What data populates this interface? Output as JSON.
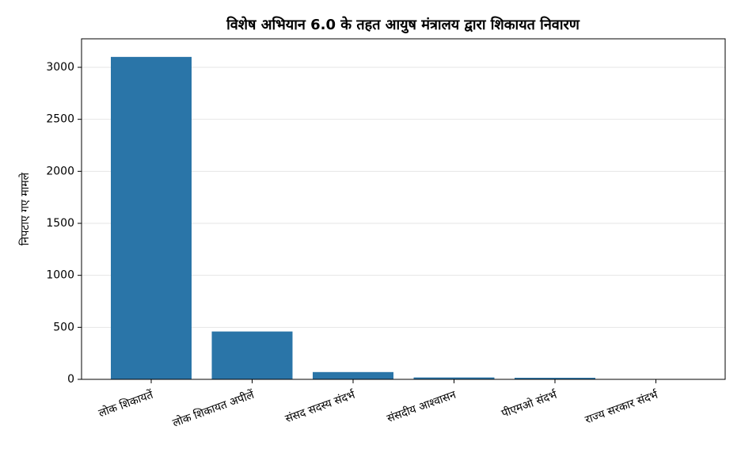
{
  "chart_data": {
    "type": "bar",
    "title": "विशेष अभियान 6.0 के तहत आयुष मंत्रालय द्वारा शिकायत निवारण",
    "y_label": "निपटाए गए मामले",
    "categories": [
      "लोक शिकायतें",
      "लोक शिकायत अपीलें",
      "संसद सदस्य संदर्भ",
      "संसदीय आश्वासन",
      "पीएमओ संदर्भ",
      "राज्य सरकार संदर्भ"
    ],
    "values": [
      3100,
      460,
      70,
      18,
      15,
      3
    ],
    "color": "#2a75a8",
    "ylim": [
      0,
      3274
    ],
    "yticks": [
      0,
      500,
      1000,
      1500,
      2000,
      2500,
      3000
    ],
    "grid": true
  }
}
